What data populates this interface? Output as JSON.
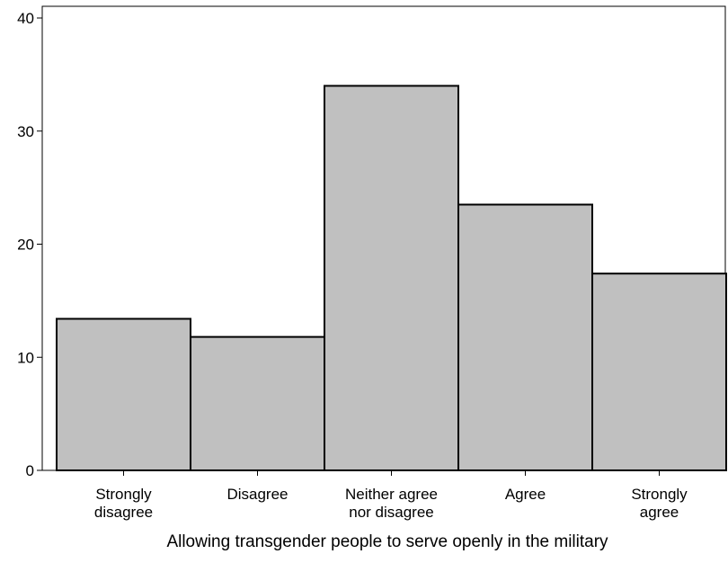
{
  "chart_data": {
    "type": "bar",
    "title": "",
    "xlabel": "Allowing transgender people to serve openly in the military",
    "ylabel": "",
    "categories": [
      [
        "Strongly",
        "disagree"
      ],
      [
        "Disagree"
      ],
      [
        "Neither agree",
        "nor disagree"
      ],
      [
        "Agree"
      ],
      [
        "Strongly",
        "agree"
      ]
    ],
    "values": [
      13.4,
      11.8,
      34.0,
      23.5,
      17.4
    ],
    "ylim": [
      0,
      40
    ],
    "yticks": [
      0,
      10,
      20,
      30,
      40
    ],
    "grid": false,
    "legend": "none",
    "colors": {
      "bar_fill": "#c0c0c0",
      "bar_stroke": "#000000",
      "axis": "#000000"
    }
  }
}
